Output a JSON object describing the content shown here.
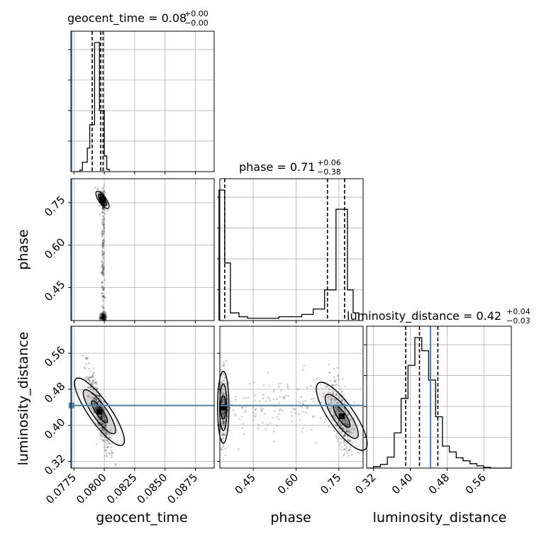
{
  "chart_data": {
    "type": "corner",
    "parameters": [
      "geocent_time",
      "phase",
      "luminosity_distance"
    ],
    "axis_labels": {
      "geocent_time": "geocent_time",
      "phase": "phase",
      "luminosity_distance": "luminosity_distance"
    },
    "panel_titles": [
      {
        "param": "geocent_time",
        "text": "geocent_time = 0.08",
        "sup": "+0.00",
        "sub": "−0.00"
      },
      {
        "param": "phase",
        "text": "phase = 0.71",
        "sup": "+0.06",
        "sub": "−0.38"
      },
      {
        "param": "luminosity_distance",
        "text": "luminosity_distance = 0.42",
        "sup": "+0.04",
        "sub": "−0.03"
      }
    ],
    "ranges": {
      "geocent_time": [
        0.07725,
        0.08905
      ],
      "phase": [
        0.333,
        0.835
      ],
      "luminosity_distance": [
        0.305,
        0.62
      ]
    },
    "ticks": {
      "geocent_time": [
        0.0775,
        0.08,
        0.0825,
        0.085,
        0.0875
      ],
      "phase": [
        0.45,
        0.6,
        0.75
      ],
      "luminosity_distance": [
        0.32,
        0.4,
        0.48,
        0.56
      ]
    },
    "tick_labels": {
      "geocent_time": [
        "0.0775",
        "0.0800",
        "0.0825",
        "0.0850",
        "0.0875"
      ],
      "phase": [
        "0.45",
        "0.60",
        "0.75"
      ],
      "luminosity_distance": [
        "0.32",
        "0.40",
        "0.48",
        "0.56"
      ]
    },
    "injection": {
      "geocent_time": 0.0773,
      "phase": null,
      "luminosity_distance": 0.444
    },
    "quantiles": {
      "geocent_time": [
        0.079,
        0.0797,
        0.0799
      ],
      "phase": [
        0.35,
        0.71,
        0.77
      ],
      "luminosity_distance": [
        0.39,
        0.42,
        0.46
      ]
    },
    "histograms": {
      "geocent_time": {
        "bin_edges": [
          0.0776,
          0.0778,
          0.078,
          0.0782,
          0.0784,
          0.0786,
          0.0788,
          0.079,
          0.0792,
          0.0794,
          0.0796,
          0.0798,
          0.08,
          0.0802,
          0.0804
        ],
        "counts": [
          0,
          0,
          2,
          12,
          12,
          30,
          60,
          60,
          165,
          165,
          78,
          78,
          20,
          3
        ]
      },
      "phase": {
        "bin_edges": [
          0.33,
          0.35,
          0.37,
          0.4,
          0.43,
          0.46,
          0.5,
          0.54,
          0.58,
          0.62,
          0.66,
          0.7,
          0.74,
          0.78,
          0.8,
          0.82
        ],
        "counts": [
          170,
          75,
          10,
          5,
          3,
          3,
          3,
          5,
          5,
          8,
          15,
          40,
          145,
          40,
          10
        ]
      },
      "luminosity_distance": {
        "bin_edges": [
          0.305,
          0.32,
          0.335,
          0.35,
          0.365,
          0.38,
          0.395,
          0.41,
          0.425,
          0.44,
          0.455,
          0.47,
          0.485,
          0.5,
          0.515,
          0.53,
          0.545,
          0.56,
          0.575,
          0.59,
          0.62
        ],
        "counts": [
          0,
          2,
          5,
          15,
          48,
          95,
          140,
          178,
          160,
          120,
          70,
          30,
          22,
          14,
          10,
          6,
          3,
          1,
          0,
          0
        ]
      }
    },
    "grid": true,
    "panels": [
      {
        "row": 0,
        "col": 0,
        "kind": "hist",
        "x": "geocent_time"
      },
      {
        "row": 1,
        "col": 0,
        "kind": "2d",
        "x": "geocent_time",
        "y": "phase"
      },
      {
        "row": 1,
        "col": 1,
        "kind": "hist",
        "x": "phase"
      },
      {
        "row": 2,
        "col": 0,
        "kind": "2d",
        "x": "geocent_time",
        "y": "luminosity_distance"
      },
      {
        "row": 2,
        "col": 1,
        "kind": "2d",
        "x": "phase",
        "y": "luminosity_distance"
      },
      {
        "row": 2,
        "col": 2,
        "kind": "hist",
        "x": "luminosity_distance"
      }
    ],
    "colors": {
      "injection": "#4682b4",
      "hist": "#000000",
      "scatter": "#000000",
      "grid": "#b0b0b0"
    }
  }
}
